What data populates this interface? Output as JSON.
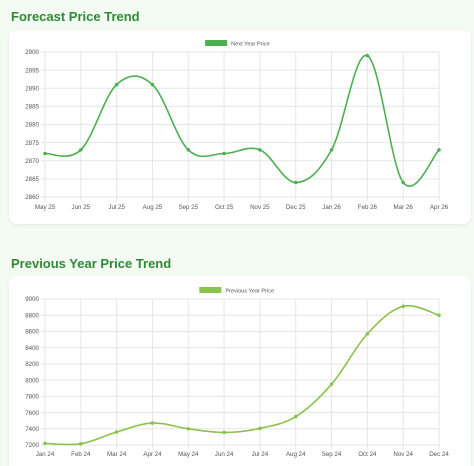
{
  "sections": [
    {
      "title": "Forecast Price Trend"
    },
    {
      "title": "Previous Year Price Trend"
    }
  ],
  "chart_data": [
    {
      "type": "line",
      "legend_position": "top-center",
      "grid": true,
      "color": "#4caf50",
      "categories": [
        "May 25",
        "Jun 25",
        "Jul 25",
        "Aug 25",
        "Sep 25",
        "Oct 25",
        "Nov 25",
        "Dec 25",
        "Jan 26",
        "Feb 26",
        "Mar 26",
        "Apr 26"
      ],
      "series": [
        {
          "name": "Next Year Price",
          "values": [
            2872,
            2873,
            2891,
            2891,
            2873,
            2872,
            2873,
            2864,
            2873,
            2899,
            2864,
            2873
          ]
        }
      ],
      "ylim": [
        2860,
        2900
      ],
      "yticks": [
        2860,
        2865,
        2870,
        2875,
        2880,
        2885,
        2890,
        2895,
        2900
      ],
      "xlabel": "",
      "ylabel": ""
    },
    {
      "type": "line",
      "legend_position": "top-center",
      "grid": true,
      "color": "#8bc34a",
      "categories": [
        "Jan 24",
        "Feb 24",
        "Mar 24",
        "Apr 24",
        "May 24",
        "Jun 24",
        "Jul 24",
        "Aug 24",
        "Sep 24",
        "Oct 24",
        "Nov 24",
        "Dec 24"
      ],
      "series": [
        {
          "name": "Previous Year Price",
          "values": [
            7220,
            7215,
            7360,
            7470,
            7400,
            7355,
            7405,
            7550,
            7950,
            8570,
            8910,
            8800
          ]
        }
      ],
      "ylim": [
        7200,
        9000
      ],
      "yticks": [
        7200,
        7400,
        7600,
        7800,
        8000,
        8200,
        8400,
        8600,
        8800,
        9000
      ],
      "xlabel": "",
      "ylabel": ""
    }
  ]
}
